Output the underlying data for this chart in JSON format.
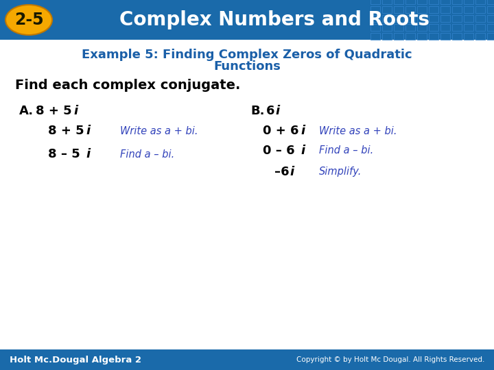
{
  "header_bg_color": "#1a6aaa",
  "header_text": "Complex Numbers and Roots",
  "header_text_color": "#ffffff",
  "badge_text": "2-5",
  "badge_bg_color": "#f5a800",
  "badge_text_color": "#1a1a00",
  "example_title_line1": "Example 5: Finding Complex Zeros of Quadratic",
  "example_title_line2": "Functions",
  "example_title_color": "#1a5fa8",
  "instruction": "Find each complex conjugate.",
  "instruction_color": "#000000",
  "note_color": "#3344bb",
  "math_color": "#000000",
  "footer_bg_color": "#1a6aaa",
  "footer_left": "Holt Mc.Dougal Algebra 2",
  "footer_right": "Copyright © by Holt Mc Dougal. All Rights Reserved.",
  "footer_text_color": "#ffffff",
  "bg_color": "#ffffff"
}
